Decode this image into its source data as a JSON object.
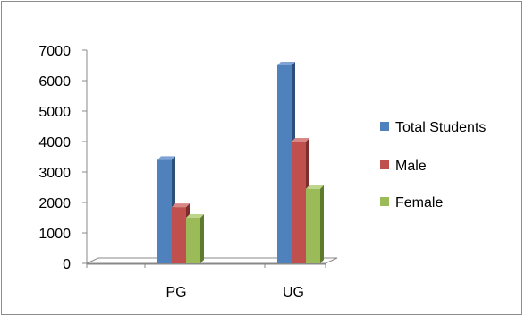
{
  "chart_data": {
    "type": "bar",
    "style": "3d-clustered-column",
    "categories": [
      "PG",
      "UG"
    ],
    "series": [
      {
        "name": "Total Students",
        "values": [
          3400,
          6500
        ],
        "color": "#4f81bd",
        "side": "#2c4f7a",
        "top": "#7ea3d4"
      },
      {
        "name": "Male",
        "values": [
          1850,
          4000
        ],
        "color": "#c0504d",
        "side": "#7d2e2c",
        "top": "#d98684"
      },
      {
        "name": "Female",
        "values": [
          1500,
          2450
        ],
        "color": "#9bbb59",
        "side": "#5e7a2c",
        "top": "#bdd68c"
      }
    ],
    "ylim": [
      0,
      7000
    ],
    "yticks": [
      "0",
      "1000",
      "2000",
      "3000",
      "4000",
      "5000",
      "6000",
      "7000"
    ],
    "grid": false,
    "legend": "right"
  }
}
